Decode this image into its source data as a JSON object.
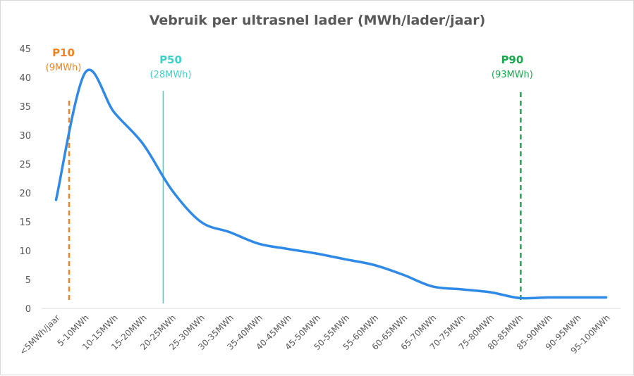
{
  "chart_data": {
    "type": "line",
    "title": "Vebruik per ultrasnel lader (MWh/lader/jaar)",
    "xlabel": "",
    "ylabel": "",
    "ylim": [
      0,
      45
    ],
    "yticks": [
      0,
      5,
      10,
      15,
      20,
      25,
      30,
      35,
      40,
      45
    ],
    "grid": false,
    "legend": "none",
    "categories": [
      "<5MWh/jaar",
      "5-10MWh",
      "10-15MWh",
      "15-20MWh",
      "20-25MWh",
      "25-30MWh",
      "30-35MWh",
      "35-40MWh",
      "40-45MWh",
      "45-50MWh",
      "50-55MWh",
      "55-60MWh",
      "60-65MWh",
      "65-70MWh",
      "70-75MWh",
      "75-80MWh",
      "80-85MWh",
      "85-90MWh",
      "90-95MWh",
      "95-100MWh"
    ],
    "series": [
      {
        "color": "#2e8ae6",
        "values": [
          18.8,
          40.8,
          34.0,
          28.5,
          20.5,
          15.0,
          13.2,
          11.2,
          10.3,
          9.5,
          8.5,
          7.5,
          5.8,
          3.8,
          3.3,
          2.8,
          1.8,
          1.9,
          1.9,
          1.9
        ]
      }
    ],
    "markers": [
      {
        "name": "P10",
        "value_label": "(9MWh)",
        "x": 0.45,
        "color": "#f5821f",
        "style": "dashed"
      },
      {
        "name": "P50",
        "value_label": "(28MWh)",
        "x": 3.7,
        "color": "#3ed1c7",
        "style": "solid"
      },
      {
        "name": "P90",
        "value_label": "(93MWh)",
        "x": 16.05,
        "color": "#1aa84f",
        "style": "dashed"
      }
    ]
  }
}
